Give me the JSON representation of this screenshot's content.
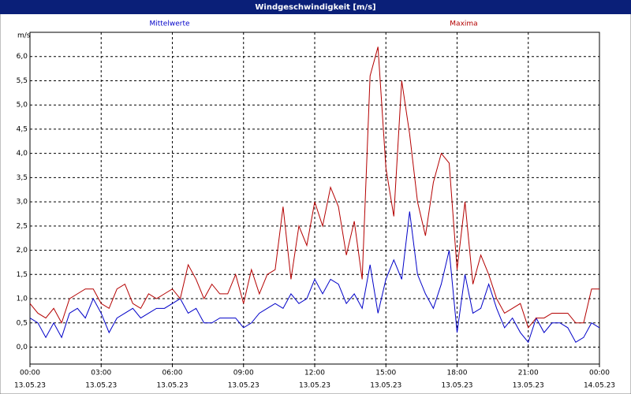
{
  "chart_data": {
    "type": "line",
    "title": "Windgeschwindigkeit [m/s]",
    "y_label": "m/s",
    "x": [
      0,
      20,
      40,
      60,
      80,
      100,
      120,
      140,
      160,
      180,
      200,
      220,
      240,
      260,
      280,
      300,
      320,
      340,
      360,
      380,
      400,
      420,
      440,
      460,
      480,
      500,
      520,
      540,
      560,
      580,
      600,
      620,
      640,
      660,
      680,
      700,
      720,
      740,
      760,
      780,
      800,
      820,
      840,
      860,
      880,
      900,
      920,
      940,
      960,
      980,
      1000,
      1020,
      1040,
      1060,
      1080,
      1100,
      1120,
      1140,
      1160,
      1180,
      1200,
      1220,
      1240,
      1260,
      1280,
      1300,
      1320,
      1340,
      1360,
      1380,
      1400,
      1420,
      1440
    ],
    "series": [
      {
        "name": "Mittelwerte",
        "color": "#0000c8",
        "values": [
          0.6,
          0.5,
          0.2,
          0.5,
          0.2,
          0.7,
          0.8,
          0.6,
          1.0,
          0.7,
          0.3,
          0.6,
          0.7,
          0.8,
          0.6,
          0.7,
          0.8,
          0.8,
          0.9,
          1.0,
          0.7,
          0.8,
          0.5,
          0.5,
          0.6,
          0.6,
          0.6,
          0.4,
          0.5,
          0.7,
          0.8,
          0.9,
          0.8,
          1.1,
          0.9,
          1.0,
          1.4,
          1.1,
          1.4,
          1.3,
          0.9,
          1.1,
          0.8,
          1.7,
          0.7,
          1.4,
          1.8,
          1.4,
          2.8,
          1.5,
          1.1,
          0.8,
          1.3,
          2.0,
          0.3,
          1.5,
          0.7,
          0.8,
          1.3,
          0.8,
          0.4,
          0.6,
          0.3,
          0.1,
          0.6,
          0.3,
          0.5,
          0.5,
          0.4,
          0.1,
          0.2,
          0.5,
          0.4
        ]
      },
      {
        "name": "Maxima",
        "color": "#b40000",
        "values": [
          0.9,
          0.7,
          0.6,
          0.8,
          0.5,
          1.0,
          1.1,
          1.2,
          1.2,
          0.9,
          0.8,
          1.2,
          1.3,
          0.9,
          0.8,
          1.1,
          1.0,
          1.1,
          1.2,
          1.0,
          1.7,
          1.4,
          1.0,
          1.3,
          1.1,
          1.1,
          1.5,
          0.9,
          1.6,
          1.1,
          1.5,
          1.6,
          2.9,
          1.4,
          2.5,
          2.1,
          3.0,
          2.5,
          3.3,
          2.9,
          1.9,
          2.6,
          1.4,
          5.6,
          6.2,
          3.7,
          2.7,
          5.5,
          4.4,
          3.0,
          2.3,
          3.4,
          4.0,
          3.8,
          1.6,
          3.0,
          1.3,
          1.9,
          1.5,
          1.0,
          0.7,
          0.8,
          0.9,
          0.4,
          0.6,
          0.6,
          0.7,
          0.7,
          0.7,
          0.5,
          0.5,
          1.2,
          1.2
        ]
      }
    ],
    "xlim": [
      0,
      1440
    ],
    "xticks": [
      {
        "value": 0,
        "label": "00:00"
      },
      {
        "value": 180,
        "label": "03:00"
      },
      {
        "value": 360,
        "label": "06:00"
      },
      {
        "value": 540,
        "label": "09:00"
      },
      {
        "value": 720,
        "label": "12:00"
      },
      {
        "value": 900,
        "label": "15:00"
      },
      {
        "value": 1080,
        "label": "18:00"
      },
      {
        "value": 1260,
        "label": "21:00"
      },
      {
        "value": 1440,
        "label": "00:00"
      }
    ],
    "xtick_dates": [
      "13.05.23",
      "13.05.23",
      "13.05.23",
      "13.05.23",
      "13.05.23",
      "13.05.23",
      "13.05.23",
      "13.05.23",
      "14.05.23"
    ],
    "ylim": [
      -0.35,
      6.5
    ],
    "yticks": [
      {
        "value": 0,
        "label": "0,0"
      },
      {
        "value": 0.5,
        "label": "0,5"
      },
      {
        "value": 1,
        "label": "1,0"
      },
      {
        "value": 1.5,
        "label": "1,5"
      },
      {
        "value": 2,
        "label": "2,0"
      },
      {
        "value": 2.5,
        "label": "2,5"
      },
      {
        "value": 3,
        "label": "3,0"
      },
      {
        "value": 3.5,
        "label": "3,5"
      },
      {
        "value": 4,
        "label": "4,0"
      },
      {
        "value": 4.5,
        "label": "4,5"
      },
      {
        "value": 5,
        "label": "5,0"
      },
      {
        "value": 5.5,
        "label": "5,5"
      },
      {
        "value": 6,
        "label": "6,0"
      }
    ],
    "grid": true
  }
}
